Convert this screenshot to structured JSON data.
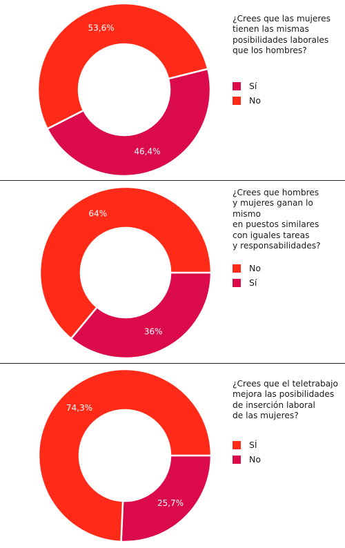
{
  "colors": {
    "red": "#FF2A17",
    "crimson": "#DB0A4B"
  },
  "chart_data": [
    {
      "type": "pie",
      "title": "¿Crees que las mujeres\ntienen las mismas\nposibilidades laborales\nque los hombres?",
      "legend": [
        {
          "label": "Sí",
          "color": "#DB0A4B"
        },
        {
          "label": "No",
          "color": "#FF2A17"
        }
      ],
      "slices": [
        {
          "label": "Sí",
          "value": 46.4,
          "value_label": "46,4%",
          "color": "#DB0A4B"
        },
        {
          "label": "No",
          "value": 53.6,
          "value_label": "53,6%",
          "color": "#FF2A17"
        }
      ],
      "legend_placement": "right"
    },
    {
      "type": "pie",
      "title": "¿Crees que hombres\ny mujeres ganan lo mismo\nen puestos similares\ncon iguales tareas\ny responsabilidades?",
      "legend": [
        {
          "label": "No",
          "color": "#FF2A17"
        },
        {
          "label": "Sí",
          "color": "#DB0A4B"
        }
      ],
      "slices": [
        {
          "label": "Sí",
          "value": 36,
          "value_label": "36%",
          "color": "#DB0A4B"
        },
        {
          "label": "No",
          "value": 64,
          "value_label": "64%",
          "color": "#FF2A17"
        }
      ],
      "legend_placement": "right"
    },
    {
      "type": "pie",
      "title": "¿Crees que el teletrabajo\nmejora las posibilidades\nde inserción laboral\nde las mujeres?",
      "legend": [
        {
          "label": "SÍ",
          "color": "#FF2A17"
        },
        {
          "label": "No",
          "color": "#DB0A4B"
        }
      ],
      "slices": [
        {
          "label": "No",
          "value": 25.7,
          "value_label": "25,7%",
          "color": "#DB0A4B"
        },
        {
          "label": "Sí",
          "value": 74.3,
          "value_label": "74,3%",
          "color": "#FF2A17"
        }
      ],
      "legend_placement": "right"
    }
  ]
}
